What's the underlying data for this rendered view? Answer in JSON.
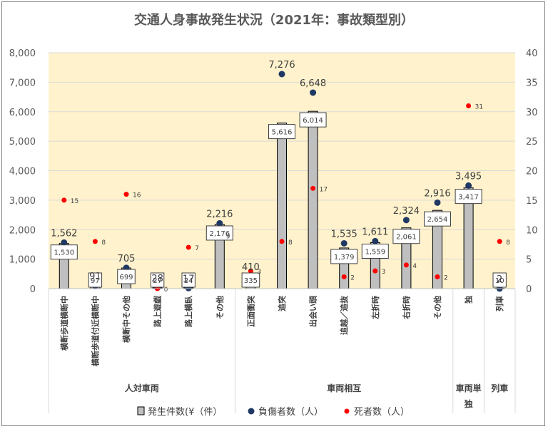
{
  "chart_data": {
    "type": "bar",
    "title": "交通人身事故発生状況（2021年：事故類型別）",
    "categories": [
      "横断歩道横断中",
      "横断歩道付近横断中",
      "横断中その他",
      "路上遊戯",
      "路上横臥",
      "その他",
      "正面衝突",
      "追突",
      "出会い頭",
      "追越／追抜",
      "左折時",
      "右折時",
      "その他",
      "独",
      "列車"
    ],
    "groups": [
      {
        "label": "人対車両",
        "start": 0,
        "end": 5
      },
      {
        "label": "車両相互",
        "start": 6,
        "end": 12
      },
      {
        "label": "車両単\n独",
        "start": 13,
        "end": 13
      },
      {
        "label": "列車",
        "start": 14,
        "end": 14
      }
    ],
    "group_label_lines": [
      [
        "人対車両"
      ],
      [
        "車両相互"
      ],
      [
        "車両単",
        "独"
      ],
      [
        "列車"
      ]
    ],
    "series": [
      {
        "name": "発生件数(¥（件）",
        "kind": "bar",
        "axis": "left",
        "color": "#bfbfbf",
        "values": [
          1530,
          97,
          699,
          27,
          24,
          2176,
          335,
          5616,
          6014,
          1379,
          1559,
          2061,
          2654,
          3417,
          10
        ]
      },
      {
        "name": "負傷者数（人）",
        "kind": "scatter",
        "axis": "left",
        "color": "#1f3864",
        "values": [
          1562,
          91,
          705,
          28,
          17,
          2216,
          410,
          7276,
          6648,
          1535,
          1611,
          2324,
          2916,
          3495,
          2
        ]
      },
      {
        "name": "死者数（人）",
        "kind": "scatter",
        "axis": "right",
        "color": "#ff0000",
        "values": [
          15,
          8,
          16,
          0,
          7,
          9,
          3,
          8,
          17,
          2,
          3,
          4,
          2,
          31,
          8
        ]
      }
    ],
    "injury_labels": [
      "1,562",
      "91",
      "705",
      "28",
      "17",
      "2,216",
      "410",
      "7,276",
      "6,648",
      "1,535",
      "1,611",
      "2,324",
      "2,916",
      "3,495",
      "2"
    ],
    "bar_labels": [
      "1,530",
      "97",
      "699",
      "27",
      "24",
      "2,176",
      "335",
      "5,616",
      "6,014",
      "1,379",
      "1,559",
      "2,061",
      "2,654",
      "3,417",
      "10"
    ],
    "death_labels": [
      "15",
      "8",
      "16",
      "0",
      "7",
      "9",
      "3",
      "8",
      "17",
      "2",
      "3",
      "4",
      "2",
      "31",
      "8"
    ],
    "y_left": {
      "min": 0,
      "max": 8000,
      "ticks": [
        "0",
        "1,000",
        "2,000",
        "3,000",
        "4,000",
        "5,000",
        "6,000",
        "7,000",
        "8,000"
      ]
    },
    "y_right": {
      "min": 0,
      "max": 40,
      "ticks": [
        "0",
        "5",
        "10",
        "15",
        "20",
        "25",
        "30",
        "35",
        "40"
      ]
    },
    "plot_background": "#fff2cc",
    "legend_position": "bottom"
  }
}
